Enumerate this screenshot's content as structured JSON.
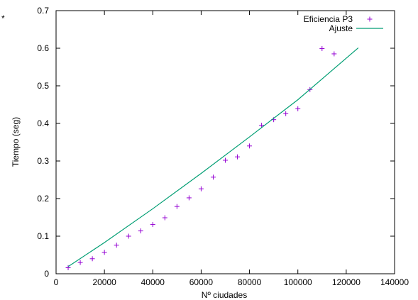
{
  "corner_mark": "*",
  "chart_data": {
    "type": "scatter",
    "title": "",
    "xlabel": "Nº ciudades",
    "ylabel": "Tiempo (seg)",
    "xlim": [
      0,
      140000
    ],
    "ylim": [
      0,
      0.7
    ],
    "xticks": [
      0,
      20000,
      40000,
      60000,
      80000,
      100000,
      120000,
      140000
    ],
    "yticks": [
      0,
      0.1,
      0.2,
      0.3,
      0.4,
      0.5,
      0.6,
      0.7
    ],
    "grid": false,
    "legend_position": "top-right",
    "series": [
      {
        "name": "Eficiencia P3",
        "kind": "points",
        "marker": "plus",
        "color": "#9400d3",
        "x": [
          5000,
          10000,
          15000,
          20000,
          25000,
          30000,
          35000,
          40000,
          45000,
          50000,
          55000,
          60000,
          65000,
          70000,
          75000,
          80000,
          85000,
          90000,
          95000,
          100000,
          105000,
          110000,
          115000
        ],
        "y": [
          0.016,
          0.03,
          0.04,
          0.057,
          0.076,
          0.1,
          0.114,
          0.131,
          0.149,
          0.179,
          0.202,
          0.226,
          0.257,
          0.302,
          0.311,
          0.34,
          0.395,
          0.41,
          0.426,
          0.439,
          0.49,
          0.599,
          0.585
        ]
      },
      {
        "name": "Ajuste",
        "kind": "line",
        "color": "#009e73",
        "x": [
          5000,
          20000,
          40000,
          60000,
          80000,
          100000,
          125000
        ],
        "y": [
          0.019,
          0.083,
          0.173,
          0.267,
          0.364,
          0.463,
          0.601
        ]
      }
    ]
  }
}
